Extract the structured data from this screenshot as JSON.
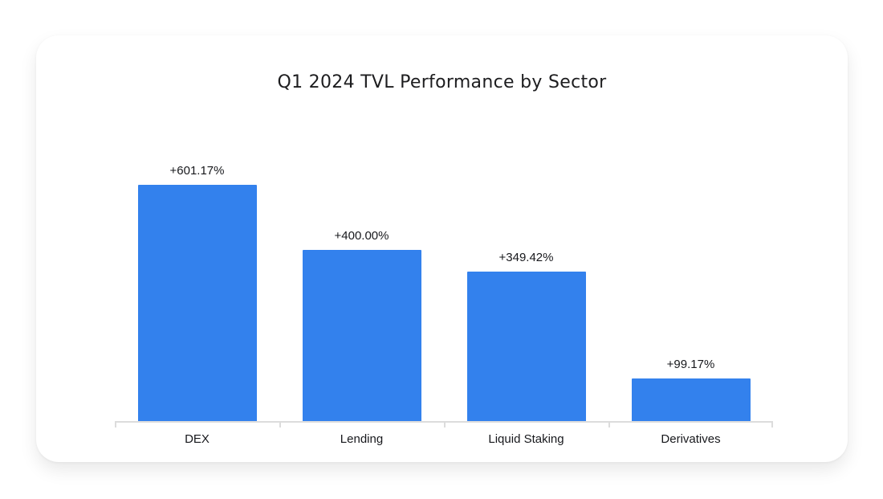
{
  "chart_data": {
    "type": "bar",
    "title": "Q1 2024 TVL Performance by Sector",
    "categories": [
      "DEX",
      "Lending",
      "Liquid Staking",
      "Derivatives"
    ],
    "values": [
      601.17,
      400.0,
      349.42,
      99.17
    ],
    "value_labels": [
      "+601.17%",
      "+400.00%",
      "+349.42%",
      "+99.17%"
    ],
    "xlabel": "",
    "ylabel": "",
    "ylim": [
      0,
      601.17
    ],
    "grid": false,
    "legend": false,
    "colors": {
      "bar": "#3381ED",
      "axis": "#DCDCDC",
      "labels": "#17181C",
      "title": "#1D1D1F",
      "card_background": "#FFFFFF",
      "page_background": "#FFFFFF"
    }
  }
}
